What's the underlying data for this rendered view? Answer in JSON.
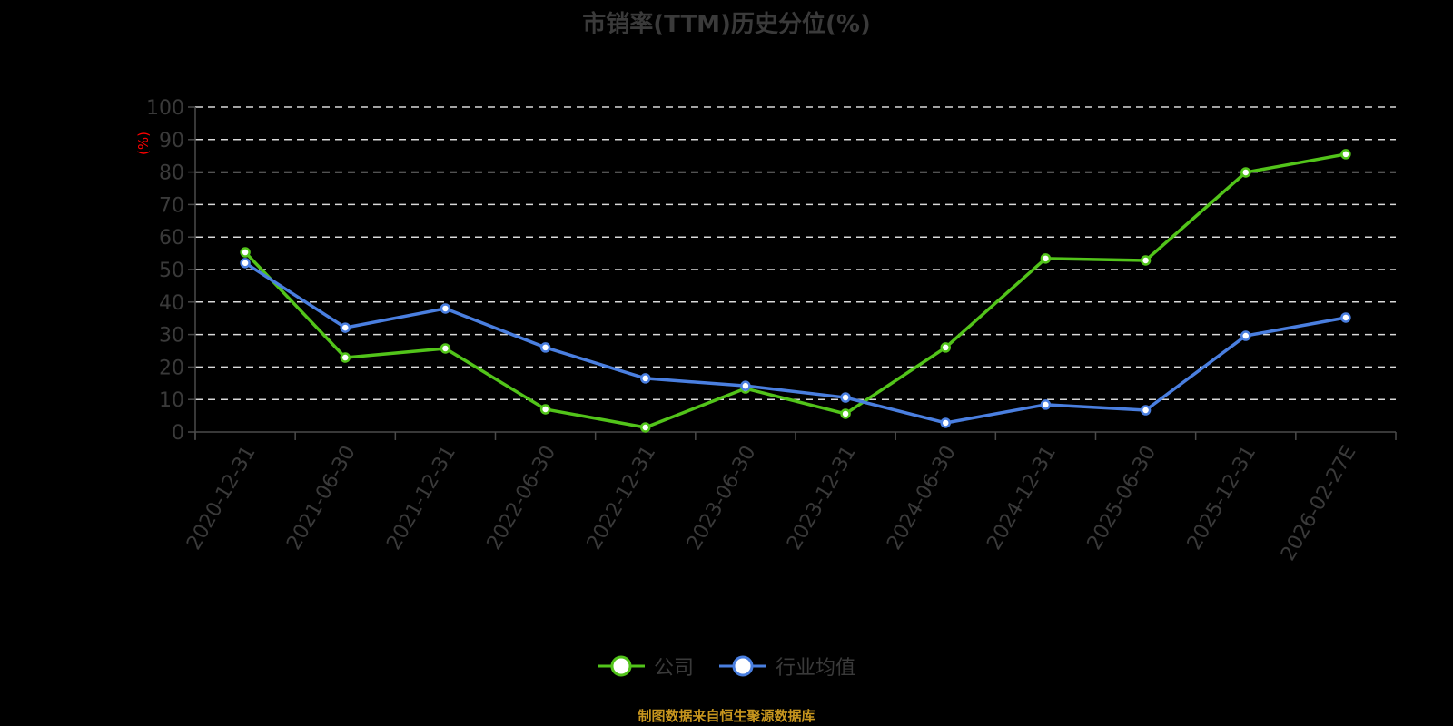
{
  "title": "市销率(TTM)历史分位(%)",
  "footer": "制图数据来自恒生聚源数据库",
  "colors": {
    "background": "#000000",
    "company": "#52c41a",
    "industry": "#4a7fe0",
    "axis": "#4a4a4a",
    "grid": "#d9d9d9",
    "tick_label": "#3a3a3a",
    "unit_label": "#ff0000",
    "footer": "#c8961e"
  },
  "legend": [
    {
      "name": "公司",
      "color": "#52c41a"
    },
    {
      "name": "行业均值",
      "color": "#4a7fe0"
    }
  ],
  "chart_data": {
    "type": "line",
    "title": "市销率(TTM)历史分位(%)",
    "xlabel": "",
    "ylabel": "(%)",
    "ylim": [
      0,
      100
    ],
    "yticks": [
      0,
      10,
      20,
      30,
      40,
      50,
      60,
      70,
      80,
      90,
      100
    ],
    "grid": true,
    "grid_style": "dashed",
    "legend_position": "bottom",
    "categories": [
      "2020-12-31",
      "2021-06-30",
      "2021-12-31",
      "2022-06-30",
      "2022-12-31",
      "2023-06-30",
      "2023-12-31",
      "2024-06-30",
      "2024-12-31",
      "2025-06-30",
      "2025-12-31",
      "2026-02-27E"
    ],
    "series": [
      {
        "name": "公司",
        "color": "#52c41a",
        "values": [
          55.3,
          22.9,
          25.7,
          7.0,
          1.4,
          13.4,
          5.6,
          26.0,
          53.4,
          52.8,
          79.9,
          85.5
        ]
      },
      {
        "name": "行业均值",
        "color": "#4a7fe0",
        "values": [
          52.0,
          32.1,
          38.0,
          26.0,
          16.5,
          14.2,
          10.6,
          2.8,
          8.4,
          6.7,
          29.6,
          35.2
        ]
      }
    ]
  }
}
